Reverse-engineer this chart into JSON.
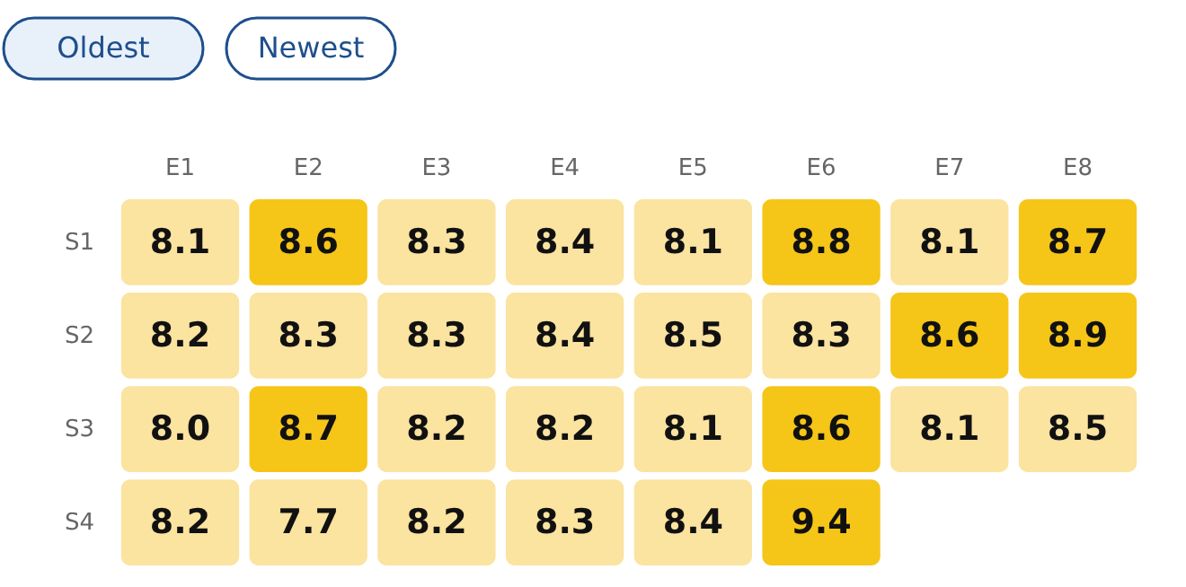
{
  "chart_data": {
    "type": "heatmap",
    "categories": [
      "E1",
      "E2",
      "E3",
      "E4",
      "E5",
      "E6",
      "E7",
      "E8"
    ],
    "y_categories": [
      "S1",
      "S2",
      "S3",
      "S4"
    ],
    "cells": [
      [
        8.1,
        8.6,
        8.3,
        8.4,
        8.1,
        8.8,
        8.1,
        8.7
      ],
      [
        8.2,
        8.3,
        8.3,
        8.4,
        8.5,
        8.3,
        8.6,
        8.9
      ],
      [
        8.0,
        8.7,
        8.2,
        8.2,
        8.1,
        8.6,
        8.1,
        8.5
      ],
      [
        8.2,
        7.7,
        8.2,
        8.3,
        8.4,
        9.4,
        null,
        null
      ]
    ],
    "cell_labels": [
      [
        "8.1",
        "8.6",
        "8.3",
        "8.4",
        "8.1",
        "8.8",
        "8.1",
        "8.7"
      ],
      [
        "8.2",
        "8.3",
        "8.3",
        "8.4",
        "8.5",
        "8.3",
        "8.6",
        "8.9"
      ],
      [
        "8.0",
        "8.7",
        "8.2",
        "8.2",
        "8.1",
        "8.6",
        "8.1",
        "8.5"
      ],
      [
        "8.2",
        "7.7",
        "8.2",
        "8.3",
        "8.4",
        "9.4",
        null,
        null
      ]
    ],
    "colors": [
      "#fbe3a0",
      "#f5c518"
    ],
    "data_labels": true,
    "annotations": [
      "Oldest",
      "Newest"
    ]
  }
}
